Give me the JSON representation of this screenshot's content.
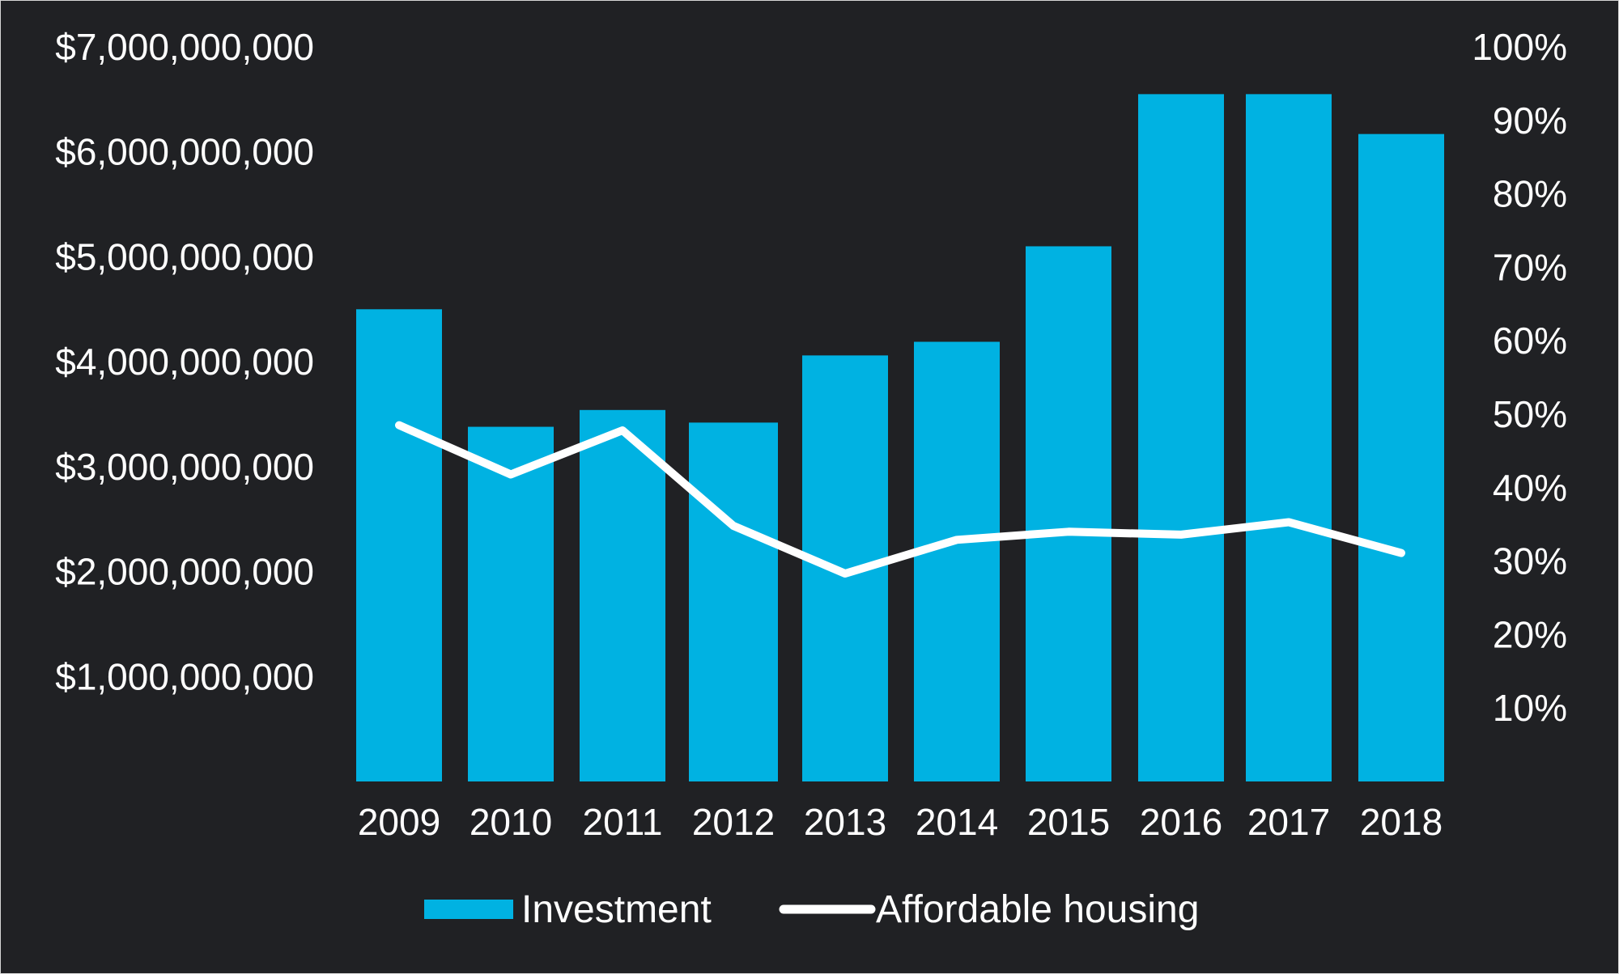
{
  "colors": {
    "background": "#202124",
    "bar": "#00b2e2",
    "line": "#ffffff",
    "text": "#ffffff"
  },
  "chart_data": {
    "type": "bar",
    "title": "",
    "xlabel": "",
    "ylabel": "",
    "categories": [
      "2009",
      "2010",
      "2011",
      "2012",
      "2013",
      "2014",
      "2015",
      "2016",
      "2017",
      "2018"
    ],
    "series": [
      {
        "name": "Investment",
        "type": "bar",
        "axis": "left",
        "values": [
          4500000000,
          3380000000,
          3540000000,
          3420000000,
          4060000000,
          4190000000,
          5100000000,
          6550000000,
          6550000000,
          6170000000
        ]
      },
      {
        "name": "Affordable housing",
        "type": "line",
        "axis": "right",
        "values": [
          48.5,
          41.8,
          47.8,
          34.8,
          28.3,
          32.9,
          34.0,
          33.6,
          35.3,
          31.1
        ]
      }
    ],
    "y_left": {
      "min": 0,
      "max": 7000000000,
      "ticks": [
        1000000000,
        2000000000,
        3000000000,
        4000000000,
        5000000000,
        6000000000,
        7000000000
      ],
      "tick_labels": [
        "$1,000,000,000",
        "$2,000,000,000",
        "$3,000,000,000",
        "$4,000,000,000",
        "$5,000,000,000",
        "$6,000,000,000",
        "$7,000,000,000"
      ]
    },
    "y_right": {
      "min": 0,
      "max": 100,
      "ticks": [
        10,
        20,
        30,
        40,
        50,
        60,
        70,
        80,
        90,
        100
      ],
      "tick_labels": [
        "10%",
        "20%",
        "30%",
        "40%",
        "50%",
        "60%",
        "70%",
        "80%",
        "90%",
        "100%"
      ]
    },
    "grid": false,
    "legend": {
      "position": "bottom-center",
      "entries": [
        "Investment",
        "Affordable housing"
      ]
    }
  }
}
